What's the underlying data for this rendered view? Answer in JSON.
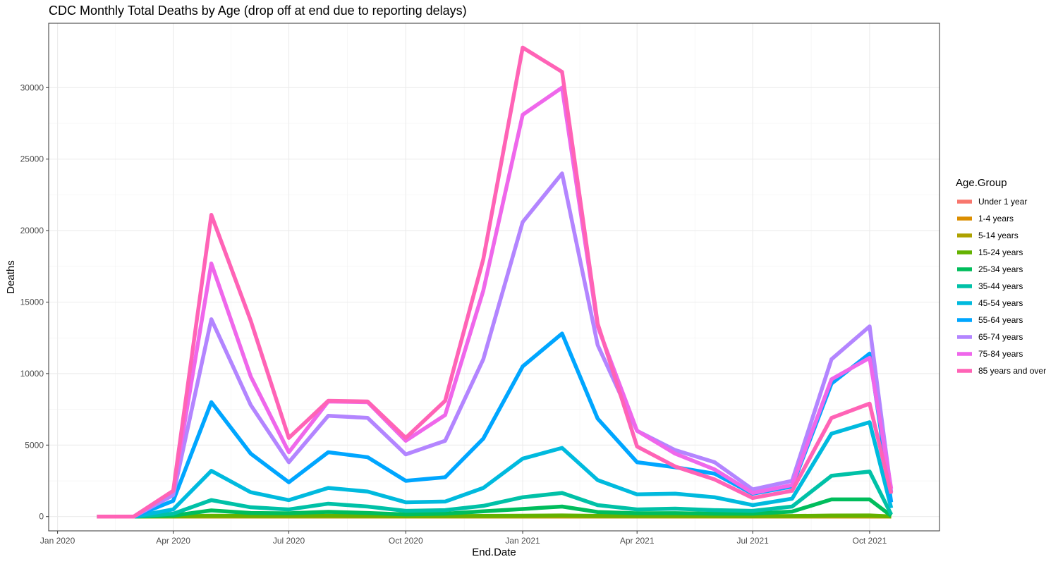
{
  "chart_data": {
    "type": "line",
    "title": "CDC Monthly Total Deaths by Age (drop off at end due to reporting delays)",
    "xlabel": "End.Date",
    "ylabel": "Deaths",
    "xlim": [
      "2019-12-25",
      "2021-11-25"
    ],
    "ylim": [
      -1000,
      34500
    ],
    "x_ticks": [
      {
        "date": "2020-01-01",
        "label": "Jan 2020"
      },
      {
        "date": "2020-04-01",
        "label": "Apr 2020"
      },
      {
        "date": "2020-07-01",
        "label": "Jul 2020"
      },
      {
        "date": "2020-10-01",
        "label": "Oct 2020"
      },
      {
        "date": "2021-01-01",
        "label": "Jan 2021"
      },
      {
        "date": "2021-04-01",
        "label": "Apr 2021"
      },
      {
        "date": "2021-07-01",
        "label": "Jul 2021"
      },
      {
        "date": "2021-10-01",
        "label": "Oct 2021"
      }
    ],
    "y_ticks": [
      0,
      5000,
      10000,
      15000,
      20000,
      25000,
      30000
    ],
    "grid": true,
    "legend": {
      "title": "Age.Group",
      "position": "right"
    },
    "x": [
      "2020-02-01",
      "2020-03-01",
      "2020-04-01",
      "2020-05-01",
      "2020-06-01",
      "2020-07-01",
      "2020-08-01",
      "2020-09-01",
      "2020-10-01",
      "2020-11-01",
      "2020-12-01",
      "2021-01-01",
      "2021-02-01",
      "2021-03-01",
      "2021-04-01",
      "2021-05-01",
      "2021-06-01",
      "2021-07-01",
      "2021-08-01",
      "2021-09-01",
      "2021-10-01",
      "2021-10-18"
    ],
    "series": [
      {
        "name": "Under 1 year",
        "color": "#F8766D",
        "values": [
          0,
          0,
          1,
          3,
          2,
          1,
          2,
          2,
          1,
          2,
          3,
          4,
          5,
          3,
          3,
          3,
          3,
          3,
          4,
          6,
          6,
          1
        ]
      },
      {
        "name": "1-4 years",
        "color": "#DB8E00",
        "values": [
          0,
          0,
          1,
          2,
          2,
          1,
          2,
          2,
          1,
          2,
          3,
          4,
          5,
          3,
          3,
          3,
          3,
          3,
          4,
          6,
          6,
          1
        ]
      },
      {
        "name": "5-14 years",
        "color": "#AEA200",
        "values": [
          0,
          0,
          2,
          4,
          3,
          2,
          3,
          3,
          2,
          3,
          4,
          6,
          8,
          5,
          4,
          4,
          4,
          4,
          6,
          10,
          10,
          2
        ]
      },
      {
        "name": "15-24 years",
        "color": "#64B200",
        "values": [
          0,
          0,
          10,
          60,
          40,
          45,
          60,
          45,
          30,
          35,
          50,
          60,
          80,
          45,
          40,
          40,
          35,
          30,
          40,
          70,
          80,
          10
        ]
      },
      {
        "name": "25-34 years",
        "color": "#00BD5C",
        "values": [
          0,
          0,
          70,
          430,
          250,
          230,
          330,
          250,
          150,
          200,
          370,
          530,
          700,
          320,
          230,
          240,
          200,
          200,
          350,
          1200,
          1200,
          50
        ]
      },
      {
        "name": "35-44 years",
        "color": "#00C1A7",
        "values": [
          0,
          0,
          200,
          1150,
          650,
          500,
          900,
          700,
          400,
          450,
          750,
          1350,
          1650,
          800,
          500,
          550,
          450,
          400,
          700,
          2850,
          3150,
          150
        ]
      },
      {
        "name": "45-54 years",
        "color": "#00BADE",
        "values": [
          0,
          0,
          500,
          3200,
          1700,
          1150,
          2000,
          1750,
          1000,
          1050,
          2000,
          4050,
          4800,
          2550,
          1550,
          1600,
          1350,
          800,
          1250,
          5800,
          6600,
          600
        ]
      },
      {
        "name": "55-64 years",
        "color": "#00A6FF",
        "values": [
          0,
          0,
          1100,
          8000,
          4400,
          2400,
          4500,
          4150,
          2500,
          2750,
          5450,
          10500,
          12800,
          6850,
          3800,
          3450,
          3000,
          1600,
          2100,
          9300,
          11400,
          1000
        ]
      },
      {
        "name": "65-74 years",
        "color": "#B385FF",
        "values": [
          0,
          0,
          1500,
          13800,
          7800,
          3800,
          7050,
          6900,
          4350,
          5300,
          11000,
          20600,
          24000,
          12000,
          6000,
          4650,
          3800,
          1900,
          2500,
          11000,
          13300,
          1700
        ]
      },
      {
        "name": "75-84 years",
        "color": "#EF67EB",
        "values": [
          0,
          0,
          1800,
          17700,
          9800,
          4500,
          8050,
          8000,
          5300,
          7100,
          15800,
          28100,
          30000,
          13300,
          6000,
          4400,
          3300,
          1650,
          2200,
          9600,
          11100,
          1950
        ]
      },
      {
        "name": "85 years and over",
        "color": "#FF63B6",
        "values": [
          0,
          0,
          1800,
          21100,
          13700,
          5500,
          8100,
          8050,
          5500,
          8100,
          18000,
          32800,
          31100,
          13500,
          4900,
          3500,
          2600,
          1300,
          1800,
          6900,
          7900,
          1600
        ]
      }
    ]
  }
}
